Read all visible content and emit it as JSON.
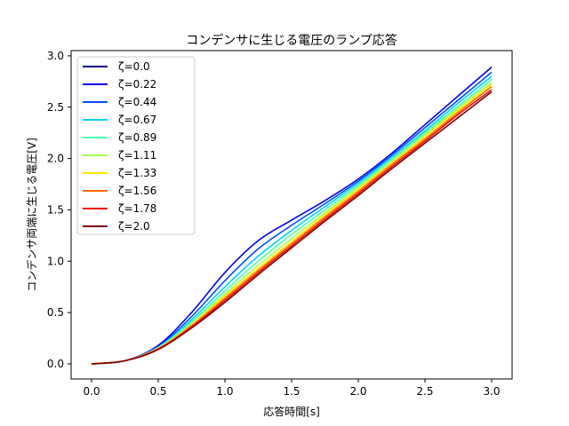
{
  "chart_data": {
    "type": "line",
    "title": "コンデンサに生じる電圧のランプ応答",
    "xlabel": "応答時間[s]",
    "ylabel": "コンデンサ両端に生じる電圧[V]",
    "xlim": [
      -0.15,
      3.15
    ],
    "ylim": [
      -0.15,
      3.05
    ],
    "xticks": [
      "0.0",
      "0.5",
      "1.0",
      "1.5",
      "2.0",
      "2.5",
      "3.0"
    ],
    "yticks": [
      "0.0",
      "0.5",
      "1.0",
      "1.5",
      "2.0",
      "2.5",
      "3.0"
    ],
    "grid": false,
    "legend_position": "upper left",
    "x": [
      0.0,
      0.25,
      0.5,
      0.75,
      1.0,
      1.25,
      1.5,
      1.75,
      2.0,
      2.25,
      2.5,
      2.75,
      3.0
    ],
    "series": [
      {
        "name": "ζ=0.0",
        "color": "#00007f",
        "values": null
      },
      {
        "name": "ζ=0.22",
        "color": "#0000f1",
        "values": [
          0.0,
          0.03,
          0.18,
          0.5,
          0.89,
          1.2,
          1.4,
          1.59,
          1.8,
          2.05,
          2.33,
          2.61,
          2.89
        ]
      },
      {
        "name": "ζ=0.44",
        "color": "#004cff",
        "values": [
          0.0,
          0.03,
          0.17,
          0.46,
          0.81,
          1.12,
          1.35,
          1.56,
          1.78,
          2.03,
          2.3,
          2.57,
          2.84
        ]
      },
      {
        "name": "ζ=0.67",
        "color": "#00d4ff",
        "values": [
          0.0,
          0.03,
          0.16,
          0.43,
          0.75,
          1.05,
          1.3,
          1.53,
          1.76,
          2.01,
          2.27,
          2.54,
          2.8
        ]
      },
      {
        "name": "ζ=0.89",
        "color": "#4cffaa",
        "values": [
          0.0,
          0.03,
          0.16,
          0.41,
          0.71,
          1.0,
          1.26,
          1.5,
          1.74,
          1.99,
          2.25,
          2.51,
          2.77
        ]
      },
      {
        "name": "ζ=1.11",
        "color": "#aaff4c",
        "values": [
          0.0,
          0.03,
          0.15,
          0.39,
          0.68,
          0.96,
          1.22,
          1.47,
          1.72,
          1.97,
          2.23,
          2.49,
          2.74
        ]
      },
      {
        "name": "ζ=1.33",
        "color": "#ffe500",
        "values": [
          0.0,
          0.03,
          0.15,
          0.38,
          0.66,
          0.93,
          1.19,
          1.45,
          1.7,
          1.95,
          2.21,
          2.47,
          2.72
        ]
      },
      {
        "name": "ζ=1.56",
        "color": "#ff6800",
        "values": [
          0.0,
          0.03,
          0.15,
          0.37,
          0.64,
          0.91,
          1.17,
          1.43,
          1.68,
          1.94,
          2.19,
          2.45,
          2.7
        ]
      },
      {
        "name": "ζ=1.78",
        "color": "#f10800",
        "values": [
          0.0,
          0.03,
          0.14,
          0.36,
          0.62,
          0.89,
          1.15,
          1.41,
          1.66,
          1.92,
          2.17,
          2.43,
          2.67
        ]
      },
      {
        "name": "ζ=2.0",
        "color": "#7f0000",
        "values": [
          0.0,
          0.03,
          0.14,
          0.35,
          0.6,
          0.87,
          1.13,
          1.39,
          1.64,
          1.9,
          2.15,
          2.4,
          2.65
        ]
      }
    ]
  }
}
